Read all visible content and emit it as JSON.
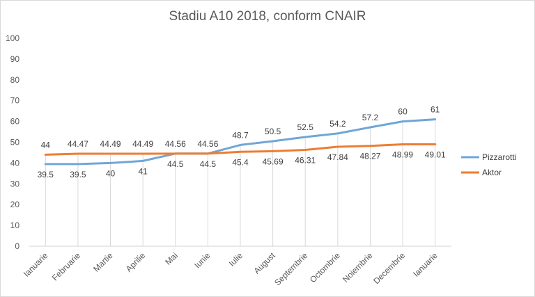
{
  "chart_data": {
    "type": "line",
    "title": "Stadiu A10 2018, conform CNAIR",
    "xlabel": "",
    "ylabel": "",
    "categories": [
      "Ianuarie",
      "Februarie",
      "Martie",
      "Aprilie",
      "Mai",
      "Iunie",
      "Iulie",
      "August",
      "Septembrie",
      "Octombrie",
      "Noiembrie",
      "Decembrie",
      "Ianuarie"
    ],
    "ylim": [
      0,
      100
    ],
    "yticks": [
      0,
      10,
      20,
      30,
      40,
      50,
      60,
      70,
      80,
      90,
      100
    ],
    "grid": false,
    "legend_position": "right",
    "series": [
      {
        "name": "Pizzarotti",
        "color": "#70a6d8",
        "values": [
          39.5,
          39.5,
          40,
          41,
          44.56,
          44.56,
          48.7,
          50.5,
          52.5,
          54.2,
          57.2,
          60,
          61
        ],
        "labels": [
          "39.5",
          "39.5",
          "40",
          "41",
          "44.56",
          "44.56",
          "48.7",
          "50.5",
          "52.5",
          "54.2",
          "57.2",
          "60",
          "61"
        ]
      },
      {
        "name": "Aktor",
        "color": "#ed7d31",
        "values": [
          44,
          44.47,
          44.49,
          44.49,
          44.5,
          44.5,
          45.4,
          45.69,
          46.31,
          47.84,
          48.27,
          48.99,
          49.01
        ],
        "labels": [
          "44",
          "44.47",
          "44.49",
          "44.49",
          "44.5",
          "44.5",
          "45.4",
          "45.69",
          "46.31",
          "47.84",
          "48.27",
          "48.99",
          "49.01"
        ]
      }
    ]
  }
}
